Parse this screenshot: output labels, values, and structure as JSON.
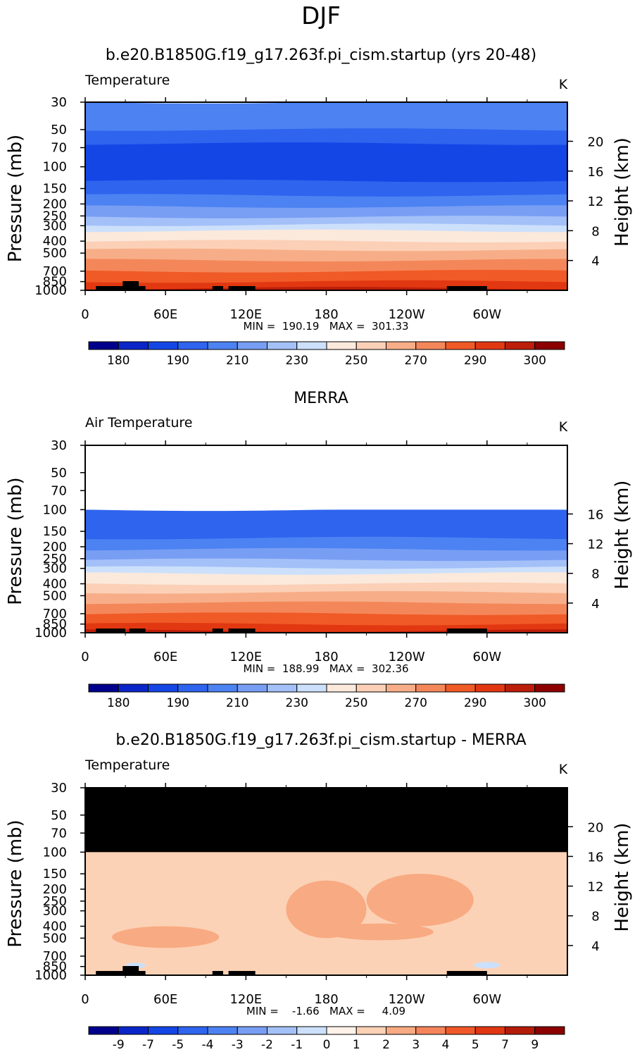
{
  "page": {
    "title": "DJF"
  },
  "colors": {
    "land_mask": "#000000",
    "missing": "#ffffff",
    "abs_scale": [
      "#00008c",
      "#0a26c8",
      "#1446e6",
      "#2e64ee",
      "#4c82f2",
      "#789ef4",
      "#a4c0f8",
      "#cce0fb",
      "#fbe9dc",
      "#fbd0b6",
      "#f7ae88",
      "#f4875a",
      "#f05a26",
      "#e23812",
      "#bc1e0a",
      "#8c0000"
    ],
    "diff_scale": [
      "#00008c",
      "#0a26c8",
      "#1446e6",
      "#2e64ee",
      "#4c82f2",
      "#789ef4",
      "#a4c0f8",
      "#cce0fb",
      "#fff2e8",
      "#fcd2b6",
      "#f8aa82",
      "#f4845c",
      "#f0582a",
      "#e03612",
      "#b41c0a",
      "#8c0000"
    ]
  },
  "chart_data": [
    {
      "type": "heatmap",
      "title": "b.e20.B1850G.f19_g17.263f.pi_cism.startup (yrs 20-48)",
      "left_label": "Temperature",
      "units": "K",
      "ylabel": "Pressure (mb)",
      "ylabel_right": "Height (km)",
      "x_ticks": [
        "0",
        "60E",
        "120E",
        "180",
        "120W",
        "60W"
      ],
      "y_ticks": [
        "30",
        "50",
        "70",
        "100",
        "150",
        "200",
        "250",
        "300",
        "400",
        "500",
        "700",
        "850",
        "1000"
      ],
      "y_ticks_right": [
        "20",
        "16",
        "12",
        "8",
        "4"
      ],
      "stats": "MIN =  190.19   MAX =  301.33",
      "colorbar_labels": [
        "180",
        "190",
        "210",
        "230",
        "250",
        "270",
        "290",
        "300"
      ],
      "profile": [
        {
          "p": 30,
          "color_index": 4
        },
        {
          "p": 50,
          "color_index": 3
        },
        {
          "p": 65,
          "color_index": 2
        },
        {
          "p": 130,
          "color_index": 3
        },
        {
          "p": 170,
          "color_index": 4
        },
        {
          "p": 210,
          "color_index": 5
        },
        {
          "p": 255,
          "color_index": 6
        },
        {
          "p": 295,
          "color_index": 7
        },
        {
          "p": 330,
          "color_index": 8
        },
        {
          "p": 400,
          "color_index": 9
        },
        {
          "p": 470,
          "color_index": 10
        },
        {
          "p": 570,
          "color_index": 11
        },
        {
          "p": 700,
          "color_index": 12
        },
        {
          "p": 850,
          "color_index": 13
        },
        {
          "p": 960,
          "color_index": 14
        },
        {
          "p": 1000,
          "color_index": 14
        }
      ],
      "blank_above_mb": null
    },
    {
      "type": "heatmap",
      "title": "MERRA",
      "left_label": "Air Temperature",
      "units": "K",
      "ylabel": "Pressure (mb)",
      "ylabel_right": "Height (km)",
      "x_ticks": [
        "0",
        "60E",
        "120E",
        "180",
        "120W",
        "60W"
      ],
      "y_ticks": [
        "30",
        "50",
        "70",
        "100",
        "150",
        "200",
        "250",
        "300",
        "400",
        "500",
        "700",
        "850",
        "1000"
      ],
      "y_ticks_right": [
        "16",
        "12",
        "8",
        "4"
      ],
      "stats": "MIN =  188.99   MAX =  302.36",
      "colorbar_labels": [
        "180",
        "190",
        "210",
        "230",
        "250",
        "270",
        "290",
        "300"
      ],
      "profile": [
        {
          "p": 100,
          "color_index": 3
        },
        {
          "p": 170,
          "color_index": 4
        },
        {
          "p": 210,
          "color_index": 5
        },
        {
          "p": 255,
          "color_index": 6
        },
        {
          "p": 295,
          "color_index": 7
        },
        {
          "p": 330,
          "color_index": 8
        },
        {
          "p": 400,
          "color_index": 9
        },
        {
          "p": 470,
          "color_index": 10
        },
        {
          "p": 570,
          "color_index": 11
        },
        {
          "p": 700,
          "color_index": 12
        },
        {
          "p": 850,
          "color_index": 13
        },
        {
          "p": 960,
          "color_index": 14
        },
        {
          "p": 1000,
          "color_index": 14
        }
      ],
      "blank_above_mb": 100
    },
    {
      "type": "heatmap",
      "title": "b.e20.B1850G.f19_g17.263f.pi_cism.startup - MERRA",
      "left_label": "Temperature",
      "units": "K",
      "ylabel": "Pressure (mb)",
      "ylabel_right": "Height (km)",
      "x_ticks": [
        "0",
        "60E",
        "120E",
        "180",
        "120W",
        "60W"
      ],
      "y_ticks": [
        "30",
        "50",
        "70",
        "100",
        "150",
        "200",
        "250",
        "300",
        "400",
        "500",
        "700",
        "850",
        "1000"
      ],
      "y_ticks_right": [
        "20",
        "16",
        "12",
        "8",
        "4"
      ],
      "stats": "MIN =    -1.66   MAX =     4.09",
      "colorbar_labels": [
        "-9",
        "-7",
        "-5",
        "-4",
        "-3",
        "-2",
        "-1",
        "0",
        "1",
        "2",
        "3",
        "4",
        "5",
        "7",
        "9"
      ],
      "base_color_index": 9,
      "masked_above_mb": 100,
      "warm_regions": [
        {
          "lon": [
            150,
            210
          ],
          "p": [
            170,
            500
          ]
        },
        {
          "lon": [
            210,
            290
          ],
          "p": [
            150,
            400
          ]
        },
        {
          "lon": [
            20,
            100
          ],
          "p": [
            400,
            600
          ]
        },
        {
          "lon": [
            180,
            260
          ],
          "p": [
            380,
            520
          ]
        }
      ],
      "cool_regions": [
        {
          "lon": [
            30,
            45
          ],
          "p": [
            790,
            880
          ]
        },
        {
          "lon": [
            290,
            310
          ],
          "p": [
            780,
            880
          ]
        }
      ]
    }
  ]
}
